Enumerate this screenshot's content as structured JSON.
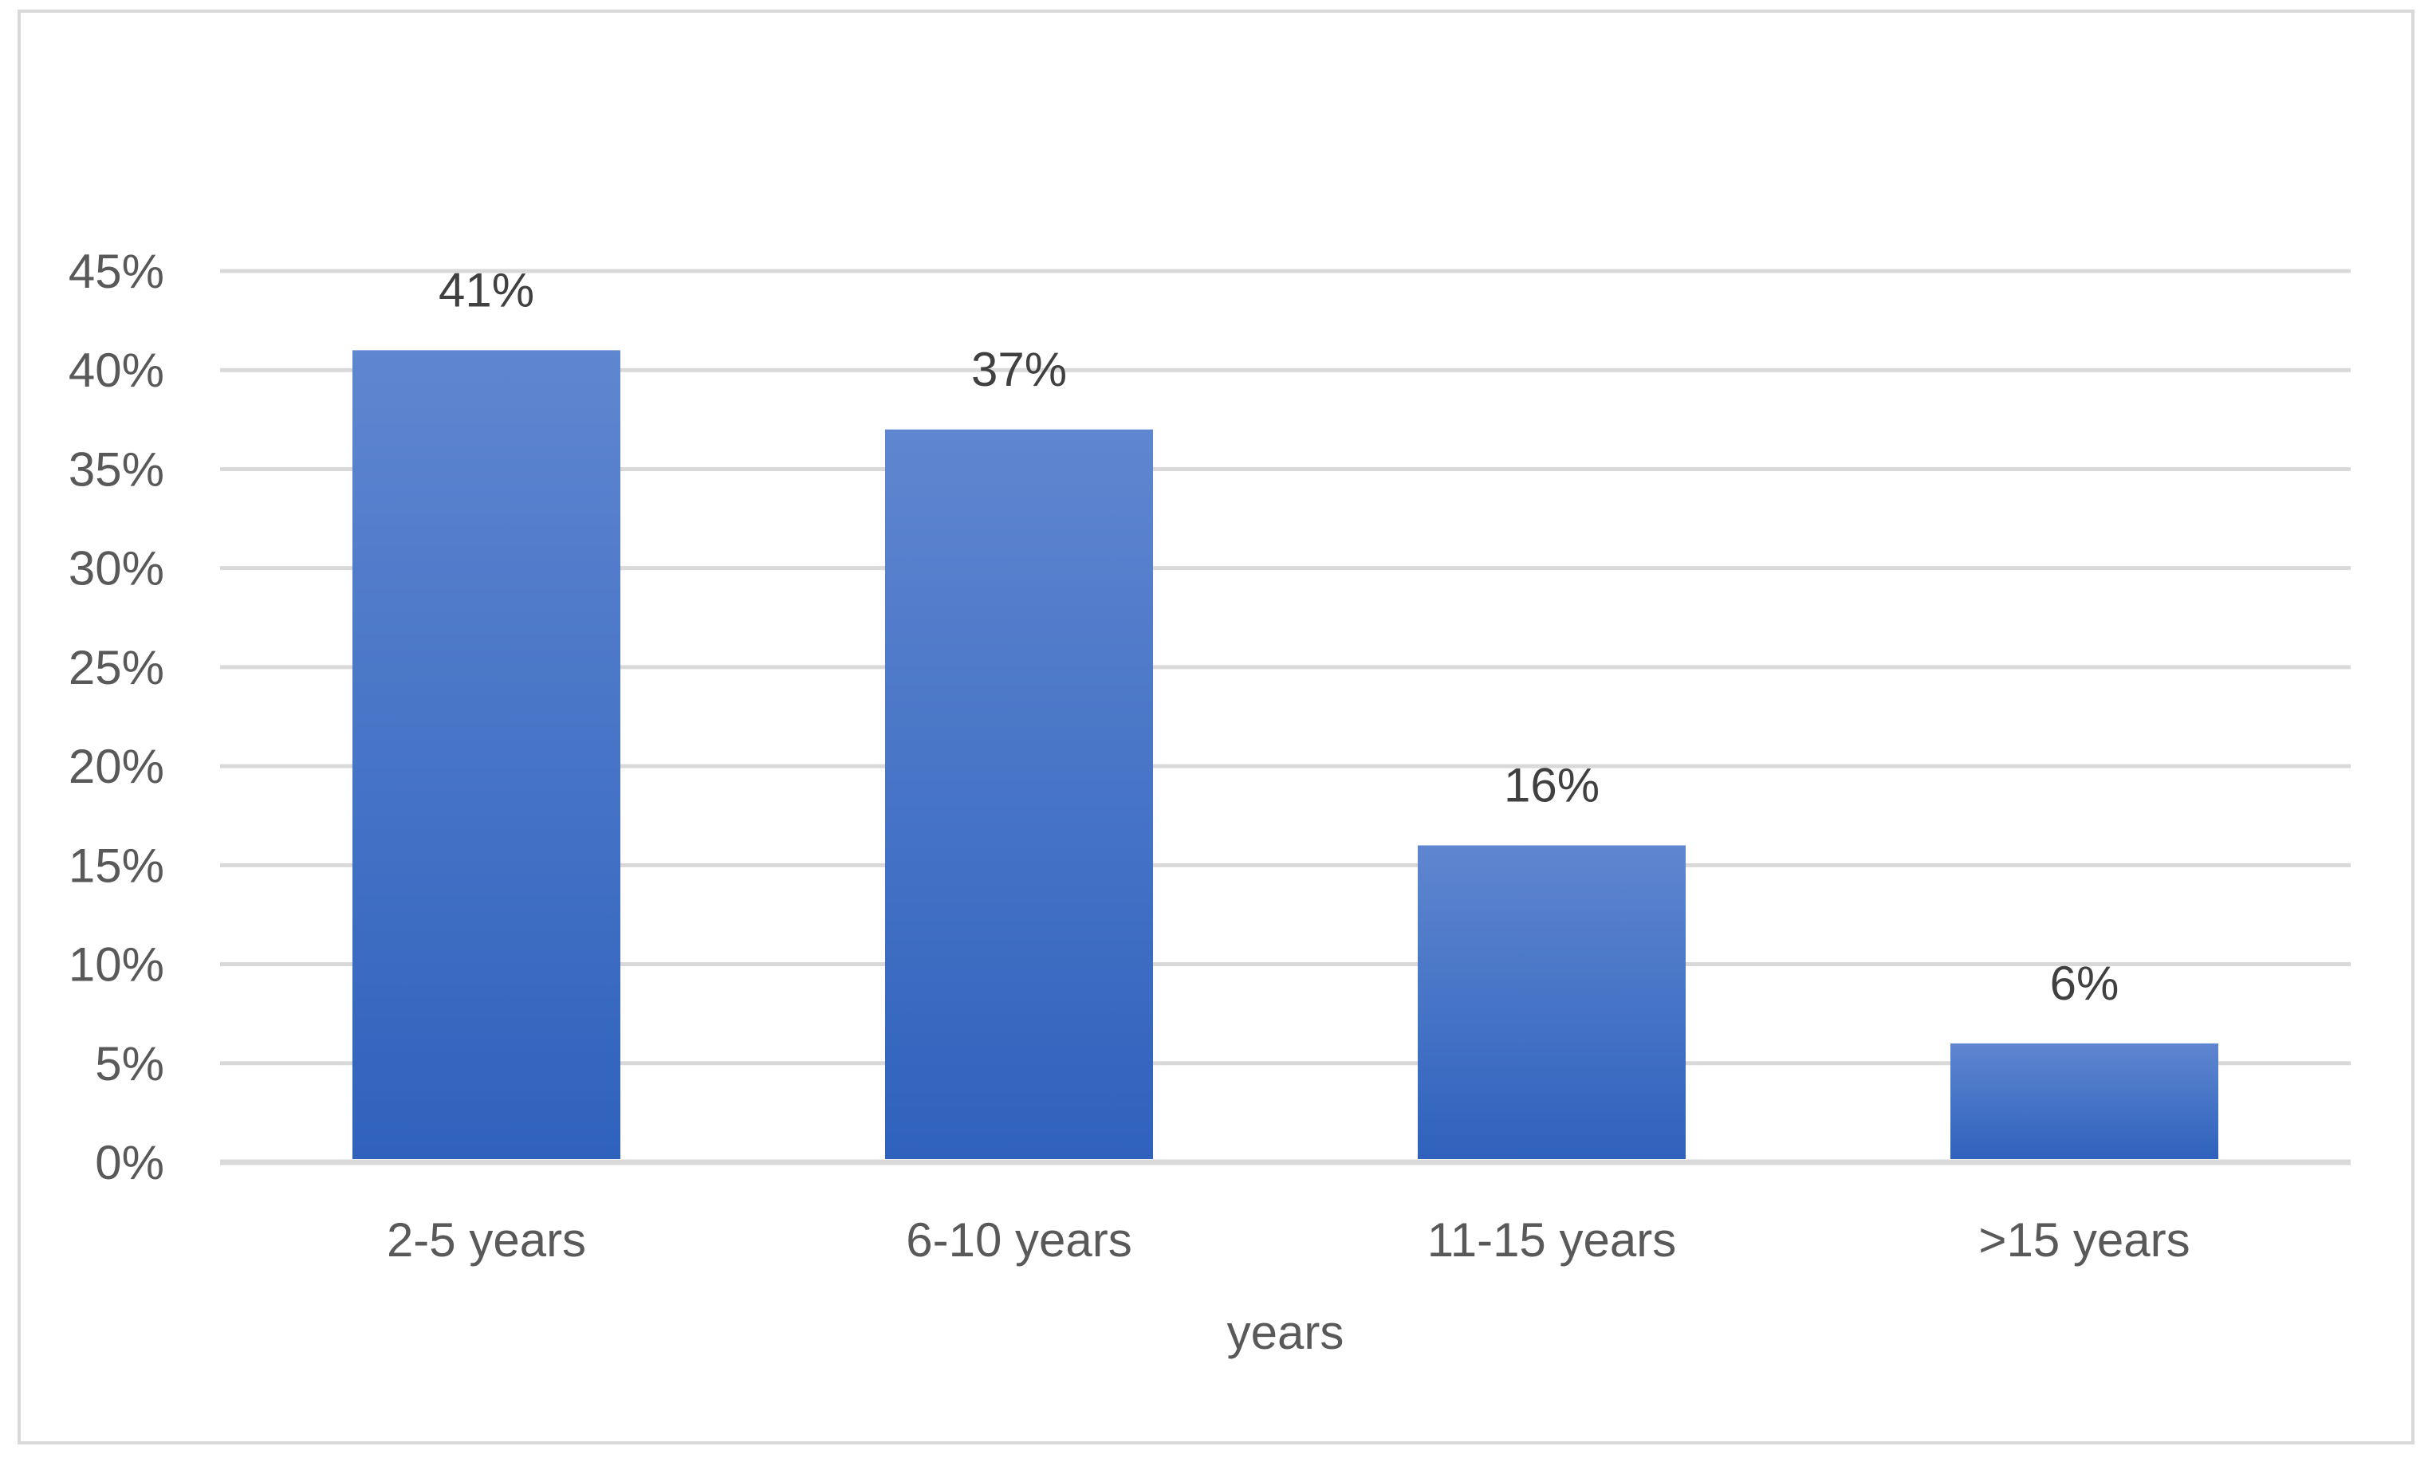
{
  "chart_data": {
    "type": "bar",
    "title": "",
    "xlabel": "years",
    "ylabel": "",
    "categories": [
      "2-5 years",
      "6-10 years",
      "11-15 years",
      ">15 years"
    ],
    "values": [
      41,
      37,
      16,
      6
    ],
    "data_labels": [
      "41%",
      "37%",
      "16%",
      "6%"
    ],
    "ylim": [
      0,
      45
    ],
    "yticks": [
      0,
      5,
      10,
      15,
      20,
      25,
      30,
      35,
      40,
      45
    ],
    "ytick_labels": [
      "0%",
      "5%",
      "10%",
      "15%",
      "20%",
      "25%",
      "30%",
      "35%",
      "40%",
      "45%"
    ],
    "grid": true,
    "legend": "none",
    "bar_color_top": "#5f86d0",
    "bar_color_bottom": "#2f62bd"
  }
}
